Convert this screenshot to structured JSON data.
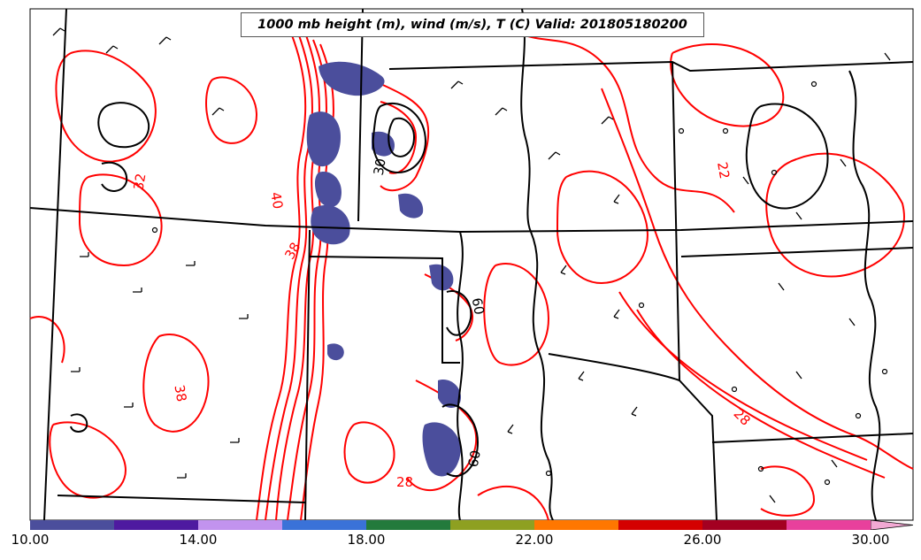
{
  "title": "1000 mb height (m), wind (m/s), T (C) Valid: 201805180200",
  "colorbar": {
    "ticks": [
      "10.00",
      "14.00",
      "18.00",
      "22.00",
      "26.00",
      "30.00"
    ],
    "colors": [
      "#4b4e9c",
      "#4e1aa0",
      "#c293ee",
      "#3a72d8",
      "#237a3c",
      "#8ea021",
      "#ff7700",
      "#d40000",
      "#a30021",
      "#e8409c",
      "#f2a9d3"
    ]
  },
  "contour_labels": {
    "temperature": [
      "32",
      "40",
      "38",
      "38",
      "28",
      "22",
      "28"
    ],
    "height": [
      "30",
      "60",
      "60"
    ]
  },
  "colors": {
    "temperature_contour": "#ff0000",
    "height_contour": "#000000",
    "state_border": "#000000",
    "precip_fill": "#4b4e9c"
  }
}
